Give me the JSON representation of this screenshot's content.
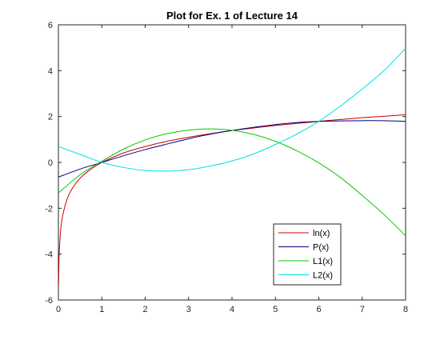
{
  "chart_data": {
    "type": "line",
    "title": "Plot for Ex. 1 of Lecture 14",
    "xlabel": "",
    "ylabel": "",
    "xlim": [
      0,
      8
    ],
    "ylim": [
      -6,
      6
    ],
    "xticks": [
      0,
      1,
      2,
      3,
      4,
      5,
      6,
      7,
      8
    ],
    "yticks": [
      -6,
      -4,
      -2,
      0,
      2,
      4,
      6
    ],
    "grid": false,
    "legend_position": "bottom-right",
    "series": [
      {
        "name": "ln(x)",
        "color": "#cc0000",
        "x": [
          0.005,
          0.01,
          0.02,
          0.05,
          0.1,
          0.2,
          0.3,
          0.5,
          0.75,
          1,
          1.5,
          2,
          2.5,
          3,
          3.5,
          4,
          4.5,
          5,
          5.5,
          6,
          6.5,
          7,
          7.5,
          8
        ],
        "y": [
          -5.3,
          -4.61,
          -3.91,
          -3.0,
          -2.3,
          -1.61,
          -1.2,
          -0.69,
          -0.29,
          0.0,
          0.41,
          0.69,
          0.92,
          1.1,
          1.25,
          1.39,
          1.5,
          1.61,
          1.7,
          1.79,
          1.87,
          1.95,
          2.01,
          2.08
        ]
      },
      {
        "name": "P(x)",
        "color": "#000080",
        "x": [
          0,
          0.5,
          1,
          1.5,
          2,
          2.5,
          3,
          3.5,
          4,
          4.5,
          5,
          5.5,
          6,
          6.5,
          7,
          7.5,
          8
        ],
        "y": [
          -0.64,
          -0.29,
          0.0,
          0.29,
          0.56,
          0.8,
          1.03,
          1.23,
          1.39,
          1.53,
          1.65,
          1.74,
          1.79,
          1.81,
          1.82,
          1.82,
          1.79
        ]
      },
      {
        "name": "L1(x)",
        "color": "#00cc00",
        "x": [
          0,
          0.5,
          1,
          1.5,
          2,
          2.5,
          3,
          3.5,
          4,
          4.5,
          5,
          5.5,
          6,
          6.5,
          7,
          7.5,
          8
        ],
        "y": [
          -1.33,
          -0.54,
          0.05,
          0.58,
          0.98,
          1.25,
          1.41,
          1.46,
          1.4,
          1.22,
          0.92,
          0.5,
          -0.02,
          -0.66,
          -1.44,
          -2.27,
          -3.2
        ]
      },
      {
        "name": "L2(x)",
        "color": "#00e0e0",
        "x": [
          0,
          0.5,
          1,
          1.5,
          2,
          2.5,
          3,
          3.5,
          4,
          4.5,
          5,
          5.5,
          6,
          6.5,
          7,
          7.5,
          8
        ],
        "y": [
          0.69,
          0.35,
          0.0,
          -0.22,
          -0.35,
          -0.38,
          -0.32,
          -0.16,
          0.06,
          0.37,
          0.78,
          1.24,
          1.79,
          2.46,
          3.2,
          4.0,
          4.97
        ]
      }
    ]
  }
}
